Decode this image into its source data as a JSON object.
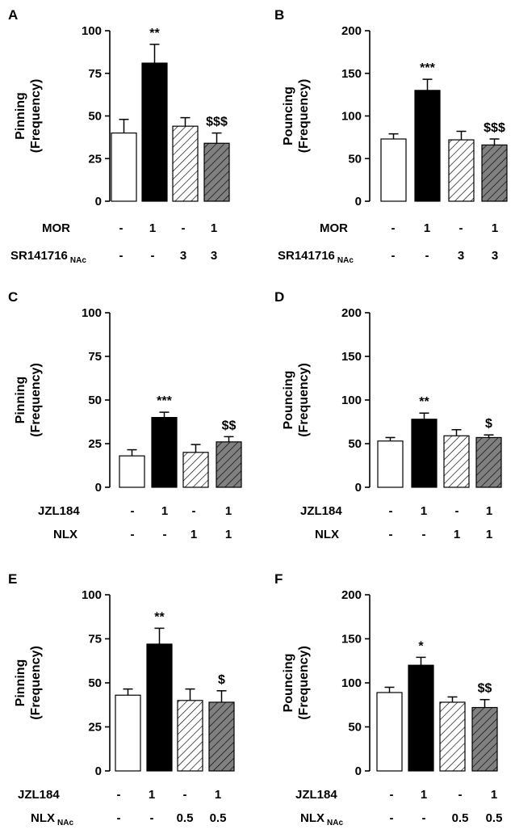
{
  "chart_data": [
    {
      "panel": "A",
      "type": "bar",
      "ylabel": "Pinning (Frequency)",
      "ylim": [
        0,
        100
      ],
      "yticks": [
        0,
        25,
        50,
        75,
        100
      ],
      "values": [
        40,
        81,
        44,
        34
      ],
      "errors": [
        8,
        11,
        5,
        6
      ],
      "significance": [
        "",
        "**",
        "",
        "$$$"
      ],
      "treatments": [
        {
          "name": "MOR",
          "subscript": "",
          "values": [
            "-",
            "1",
            "-",
            "1"
          ]
        },
        {
          "name": "SR141716",
          "subscript": "NAc",
          "values": [
            "-",
            "-",
            "3",
            "3"
          ]
        }
      ]
    },
    {
      "panel": "B",
      "type": "bar",
      "ylabel": "Pouncing (Frequency)",
      "ylim": [
        0,
        200
      ],
      "yticks": [
        0,
        50,
        100,
        150,
        200
      ],
      "values": [
        73,
        130,
        72,
        66
      ],
      "errors": [
        6,
        13,
        10,
        7
      ],
      "significance": [
        "",
        "***",
        "",
        "$$$"
      ],
      "treatments": [
        {
          "name": "MOR",
          "subscript": "",
          "values": [
            "-",
            "1",
            "-",
            "1"
          ]
        },
        {
          "name": "SR141716",
          "subscript": "NAc",
          "values": [
            "-",
            "-",
            "3",
            "3"
          ]
        }
      ]
    },
    {
      "panel": "C",
      "type": "bar",
      "ylabel": "Pinning (Frequency)",
      "ylim": [
        0,
        100
      ],
      "yticks": [
        0,
        25,
        50,
        75,
        100
      ],
      "values": [
        18,
        40,
        20,
        26
      ],
      "errors": [
        3.5,
        3,
        4.5,
        3
      ],
      "significance": [
        "",
        "***",
        "",
        "$$"
      ],
      "treatments": [
        {
          "name": "JZL184",
          "subscript": "",
          "values": [
            "-",
            "1",
            "-",
            "1"
          ]
        },
        {
          "name": "NLX",
          "subscript": "",
          "values": [
            "-",
            "-",
            "1",
            "1"
          ]
        }
      ]
    },
    {
      "panel": "D",
      "type": "bar",
      "ylabel": "Pouncing (Frequency)",
      "ylim": [
        0,
        200
      ],
      "yticks": [
        0,
        50,
        100,
        150,
        200
      ],
      "values": [
        53,
        78,
        59,
        57
      ],
      "errors": [
        4,
        7,
        7,
        3
      ],
      "significance": [
        "",
        "**",
        "",
        "$"
      ],
      "treatments": [
        {
          "name": "JZL184",
          "subscript": "",
          "values": [
            "-",
            "1",
            "-",
            "1"
          ]
        },
        {
          "name": "NLX",
          "subscript": "",
          "values": [
            "-",
            "-",
            "1",
            "1"
          ]
        }
      ]
    },
    {
      "panel": "E",
      "type": "bar",
      "ylabel": "Pinning (Frequency)",
      "ylim": [
        0,
        100
      ],
      "yticks": [
        0,
        25,
        50,
        75,
        100
      ],
      "values": [
        43,
        72,
        40,
        39
      ],
      "errors": [
        3.5,
        9,
        6.5,
        6.5
      ],
      "significance": [
        "",
        "**",
        "",
        "$"
      ],
      "treatments": [
        {
          "name": "JZL184",
          "subscript": "",
          "values": [
            "-",
            "1",
            "-",
            "1"
          ]
        },
        {
          "name": "NLX",
          "subscript": "NAc",
          "values": [
            "-",
            "-",
            "0.5",
            "0.5"
          ]
        }
      ]
    },
    {
      "panel": "F",
      "type": "bar",
      "ylabel": "Pouncing (Frequency)",
      "ylim": [
        0,
        200
      ],
      "yticks": [
        0,
        50,
        100,
        150,
        200
      ],
      "values": [
        89,
        120,
        78,
        72
      ],
      "errors": [
        6,
        9,
        6,
        9
      ],
      "significance": [
        "*",
        "",
        "",
        "$$"
      ],
      "significance_positions": [
        1,
        3
      ],
      "treatments": [
        {
          "name": "JZL184",
          "subscript": "",
          "values": [
            "-",
            "1",
            "-",
            "1"
          ]
        },
        {
          "name": "NLX",
          "subscript": "NAc",
          "values": [
            "-",
            "-",
            "0.5",
            "0.5"
          ]
        }
      ]
    }
  ],
  "bar_styles": [
    "open",
    "filled-black",
    "hatched-white",
    "hatched-grey"
  ],
  "colors": {
    "filled": "#000000",
    "hatched_grey_fill": "#808080",
    "open_fill": "#ffffff"
  }
}
